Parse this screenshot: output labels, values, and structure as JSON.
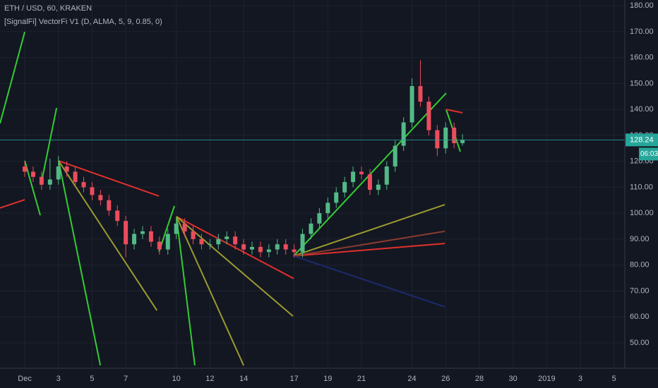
{
  "chart_data": {
    "type": "candlestick",
    "title": "ETH / USD, 60, KRAKEN",
    "subtitle": "[SignalFi] VectorFi V1 (D, ALMA, 5, 9, 0.85, 0)",
    "countdown": "06:03",
    "xlim": [
      -0.47,
      36.64
    ],
    "xticks": [
      {
        "value": 1,
        "label": "Dec"
      },
      3,
      5,
      7,
      10,
      12,
      14,
      17,
      19,
      21,
      24,
      26,
      28,
      30,
      {
        "value": 32,
        "label": "2019"
      },
      {
        "value": 34,
        "label": "3"
      },
      {
        "value": 36,
        "label": "5"
      }
    ],
    "ylim": [
      40.2,
      182.2
    ],
    "yticks": [
      {
        "value": 180,
        "label": "180.00"
      },
      {
        "value": 170,
        "label": "170.00"
      },
      {
        "value": 160,
        "label": "160.00"
      },
      {
        "value": 150,
        "label": "150.00"
      },
      {
        "value": 140,
        "label": "140.00"
      },
      {
        "value": 130,
        "label": "130.00"
      },
      {
        "value": 120,
        "label": "120.00"
      },
      {
        "value": 110,
        "label": "110.00"
      },
      {
        "value": 100,
        "label": "100.00"
      },
      {
        "value": 90,
        "label": "90.00"
      },
      {
        "value": 80,
        "label": "80.00"
      },
      {
        "value": 70,
        "label": "70.00"
      },
      {
        "value": 60,
        "label": "60.00"
      },
      {
        "value": 50,
        "label": "50.00"
      }
    ],
    "grid": true,
    "up_color": "#53b987",
    "down_color": "#eb4d5c",
    "price_line_color": "#26a69a",
    "x": [
      1,
      1.5,
      2,
      2.5,
      3,
      3.5,
      4,
      4.5,
      5,
      5.5,
      6,
      6.5,
      7,
      7.5,
      8,
      8.5,
      9,
      9.5,
      10,
      10.5,
      11,
      11.5,
      12,
      12.5,
      13,
      13.5,
      14,
      14.5,
      15,
      15.5,
      16,
      16.5,
      17,
      17.5,
      18,
      18.5,
      19,
      19.5,
      20,
      20.5,
      21,
      21.5,
      22,
      22.5,
      23,
      23.5,
      24,
      24.5,
      25,
      25.5,
      26,
      26.5,
      27
    ],
    "open": [
      118,
      116,
      114,
      111,
      113,
      118,
      116,
      112,
      110,
      107,
      105,
      101,
      97,
      88,
      92,
      93,
      89,
      86,
      92,
      96,
      93,
      90,
      88,
      88,
      90,
      91,
      88,
      86,
      87,
      85,
      86,
      88,
      86,
      85,
      92,
      96,
      100,
      104,
      108,
      112,
      116,
      115,
      109,
      111,
      118,
      126,
      135,
      149,
      143,
      132,
      125,
      133,
      127
    ],
    "high": [
      120,
      118,
      116,
      121,
      122,
      120,
      118,
      114,
      112,
      109,
      107,
      103,
      99,
      94,
      95,
      95,
      91,
      94,
      98,
      98,
      95,
      92,
      90,
      92,
      93,
      93,
      90,
      89,
      89,
      88,
      90,
      90,
      88,
      94,
      98,
      102,
      106,
      110,
      114,
      118,
      118,
      117,
      113,
      120,
      128,
      137,
      152,
      159,
      145,
      134,
      135,
      135,
      130.5
    ],
    "low": [
      114,
      112,
      109,
      109,
      111,
      114,
      110,
      108,
      105,
      103,
      99,
      95,
      83,
      86,
      90,
      87,
      84,
      84,
      90,
      91,
      88,
      86,
      86,
      86,
      88,
      86,
      84,
      84,
      83,
      83,
      84,
      84,
      83,
      83,
      90,
      94,
      98,
      102,
      106,
      110,
      113,
      107,
      107,
      109,
      116,
      124,
      133,
      141,
      130,
      122,
      123,
      125,
      126
    ],
    "close": [
      116,
      114,
      111,
      113,
      118,
      116,
      112,
      110,
      107,
      105,
      101,
      97,
      88,
      92,
      93,
      89,
      86,
      92,
      96,
      93,
      90,
      88,
      88,
      90,
      91,
      88,
      86,
      87,
      85,
      86,
      88,
      86,
      85,
      92,
      96,
      100,
      104,
      108,
      112,
      116,
      115,
      109,
      111,
      118,
      126,
      135,
      149,
      143,
      132,
      125,
      133,
      127,
      128.24
    ],
    "vectors": [
      {
        "x": [
          -0.47,
          1.0
        ],
        "values": [
          134.6,
          169.9
        ],
        "color": "#33cc33"
      },
      {
        "x": [
          1.0,
          1.92
        ],
        "values": [
          120.2,
          99.2
        ],
        "color": "#33cc33"
      },
      {
        "x": [
          1.96,
          2.89
        ],
        "values": [
          110.9,
          140.6
        ],
        "color": "#33cc33"
      },
      {
        "x": [
          -0.47,
          1.0
        ],
        "values": [
          102.0,
          105.2
        ],
        "color": "#e0302c"
      },
      {
        "x": [
          3.01,
          8.97
        ],
        "values": [
          120.2,
          106.6
        ],
        "color": "#e0302c"
      },
      {
        "x": [
          3.01,
          5.49
        ],
        "values": [
          120.2,
          41.3
        ],
        "color": "#33cc33"
      },
      {
        "x": [
          3.01,
          8.85
        ],
        "values": [
          120.2,
          62.5
        ],
        "color": "#9a9a30"
      },
      {
        "x": [
          8.97,
          9.89
        ],
        "values": [
          85.1,
          102.8
        ],
        "color": "#33cc33"
      },
      {
        "x": [
          10.01,
          11.1
        ],
        "values": [
          98.7,
          41.3
        ],
        "color": "#33cc33"
      },
      {
        "x": [
          10.01,
          16.97
        ],
        "values": [
          98.7,
          74.8
        ],
        "color": "#e0302c"
      },
      {
        "x": [
          10.01,
          16.93
        ],
        "values": [
          98.7,
          60.3
        ],
        "color": "#9a9a30"
      },
      {
        "x": [
          10.01,
          14.0
        ],
        "values": [
          98.7,
          41.3
        ],
        "color": "#9a9a30"
      },
      {
        "x": [
          16.97,
          26.03
        ],
        "values": [
          83.5,
          146.3
        ],
        "color": "#33cc33"
      },
      {
        "x": [
          16.97,
          25.95
        ],
        "values": [
          83.5,
          88.3
        ],
        "color": "#e0302c"
      },
      {
        "x": [
          16.97,
          25.95
        ],
        "values": [
          83.5,
          103.3
        ],
        "color": "#9a9a30"
      },
      {
        "x": [
          16.97,
          25.95
        ],
        "values": [
          83.5,
          93.0
        ],
        "color": "#8a3a30"
      },
      {
        "x": [
          16.97,
          25.95
        ],
        "values": [
          83.5,
          63.9
        ],
        "color": "#1c2a6e"
      },
      {
        "x": [
          26.03,
          26.87
        ],
        "values": [
          140.0,
          123.7
        ],
        "color": "#33cc33"
      },
      {
        "x": [
          26.03,
          27.0
        ],
        "values": [
          140.0,
          138.7
        ],
        "color": "#e0302c"
      }
    ]
  }
}
